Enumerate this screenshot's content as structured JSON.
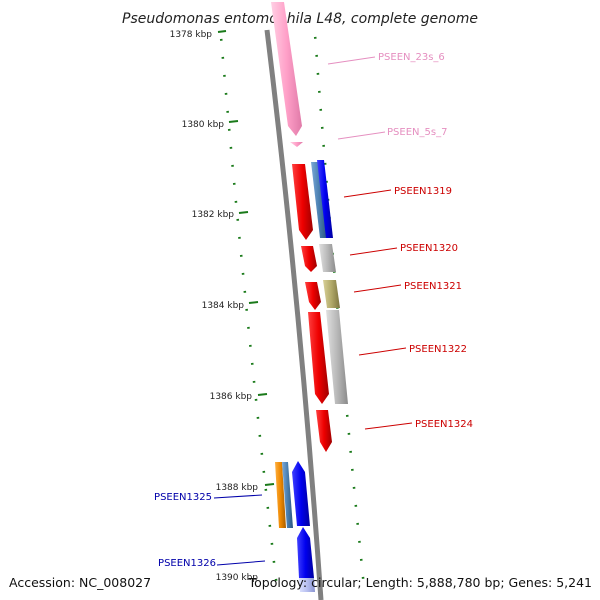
{
  "title": "Pseudomonas entomophila L48, complete genome",
  "footer": {
    "accession": "Accession: NC_008027",
    "summary": "Topology: circular; Length: 5,888,780 bp; Genes: 5,241"
  },
  "ticks": [
    {
      "label": "1378 kbp"
    },
    {
      "label": "1380 kbp"
    },
    {
      "label": "1382 kbp"
    },
    {
      "label": "1384 kbp"
    },
    {
      "label": "1386 kbp"
    },
    {
      "label": "1388 kbp"
    },
    {
      "label": "1390 kbp"
    }
  ],
  "gene_labels": [
    {
      "text": "PSEEN_23s_6",
      "color": "#e58fc0"
    },
    {
      "text": "PSEEN_5s_7",
      "color": "#e58fc0"
    },
    {
      "text": "PSEEN1319",
      "color": "#cc0000"
    },
    {
      "text": "PSEEN1320",
      "color": "#cc0000"
    },
    {
      "text": "PSEEN1321",
      "color": "#cc0000"
    },
    {
      "text": "PSEEN1322",
      "color": "#cc0000"
    },
    {
      "text": "PSEEN1324",
      "color": "#cc0000"
    },
    {
      "text": "PSEEN1325",
      "color": "#0000aa"
    },
    {
      "text": "PSEEN1326",
      "color": "#0000aa"
    }
  ],
  "colors": {
    "backbone": "#808080",
    "tick_marks": "#1a7a1a",
    "rrna": "#ffa0c8",
    "cds_red": "#ee0000",
    "cds_blue": "#0000ee",
    "cds_steel": "#4a7fb0",
    "cds_gray": "#b8b8b8",
    "cds_olive": "#b0a868",
    "cds_orange": "#ee8800",
    "cds_lightblue": "#b8c0f0"
  }
}
